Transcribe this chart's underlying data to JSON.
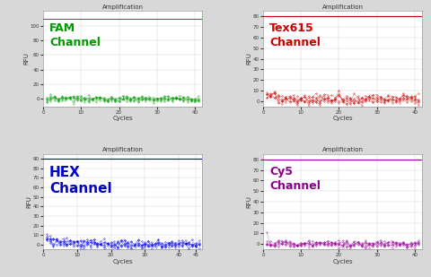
{
  "title": "Amplification",
  "xlabel": "Cycles",
  "ylabel": "RFU",
  "channels": [
    {
      "name": "FAM\nChannel",
      "color": "#009900",
      "hline_y": 110,
      "ylim": [
        -10,
        120
      ],
      "yticks": [
        0,
        20,
        40,
        60,
        80,
        100
      ],
      "xticks": [
        0,
        10,
        20,
        30,
        40
      ],
      "xlim": [
        0,
        42
      ],
      "noise_mean": 0,
      "noise_std": 2.5,
      "text_color": "#009900",
      "text_fontsize": 9
    },
    {
      "name": "Tex615\nChannel",
      "color": "#cc0000",
      "hline_y": 80,
      "ylim": [
        -5,
        85
      ],
      "yticks": [
        0,
        10,
        20,
        30,
        40,
        50,
        60,
        70,
        80
      ],
      "xticks": [
        0,
        10,
        20,
        30,
        40
      ],
      "xlim": [
        0,
        42
      ],
      "noise_mean": 1.5,
      "noise_std": 2.5,
      "text_color": "#cc0000",
      "text_fontsize": 9
    },
    {
      "name": "HEX\nChannel",
      "color": "#0000ee",
      "hline_y": 90,
      "ylim": [
        -5,
        95
      ],
      "yticks": [
        0,
        10,
        20,
        30,
        40,
        50,
        60,
        70,
        80,
        90
      ],
      "xticks": [
        0,
        10,
        20,
        30,
        40,
        45
      ],
      "xlim": [
        0,
        47
      ],
      "noise_mean": 0,
      "noise_std": 2.5,
      "text_color": "#0000cc",
      "text_fontsize": 11
    },
    {
      "name": "Cy5\nChannel",
      "color": "#990099",
      "hline_y": 80,
      "ylim": [
        -5,
        85
      ],
      "yticks": [
        0,
        10,
        20,
        30,
        40,
        50,
        60,
        70,
        80
      ],
      "xticks": [
        0,
        10,
        20,
        30,
        40
      ],
      "xlim": [
        0,
        42
      ],
      "noise_mean": 0,
      "noise_std": 1.8,
      "text_color": "#880088",
      "text_fontsize": 9
    }
  ],
  "bg_color": "#ffffff",
  "fig_bg_color": "#d8d8d8",
  "grid_color": "#bbbbbb",
  "title_fontsize": 5,
  "axis_label_fontsize": 5,
  "tick_fontsize": 4
}
